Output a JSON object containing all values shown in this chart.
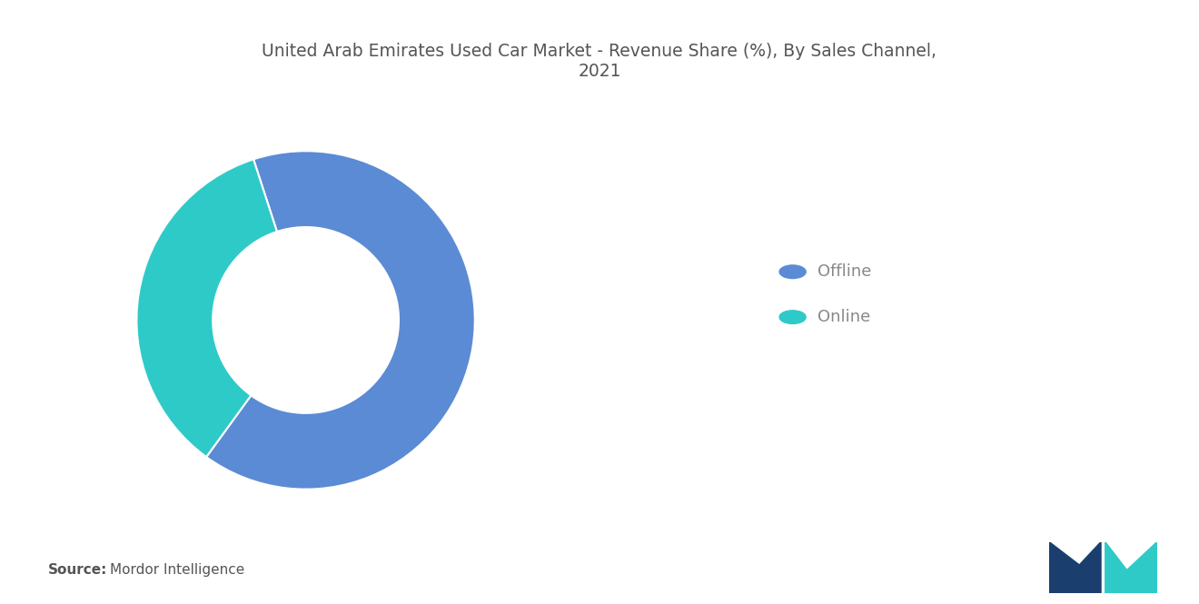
{
  "title": "United Arab Emirates Used Car Market - Revenue Share (%), By Sales Channel,\n2021",
  "segments": [
    "Offline",
    "Online"
  ],
  "values": [
    65,
    35
  ],
  "colors": [
    "#5B8BD4",
    "#2ECAC8"
  ],
  "legend_labels": [
    "Offline",
    "Online"
  ],
  "source_bold": "Source:",
  "source_text": "Mordor Intelligence",
  "background_color": "#ffffff",
  "title_color": "#555555",
  "legend_text_color": "#888888",
  "source_text_color": "#555555",
  "donut_width": 0.45,
  "start_angle": 108,
  "counterclock": false,
  "title_fontsize": 13.5,
  "legend_fontsize": 13,
  "source_fontsize": 11
}
